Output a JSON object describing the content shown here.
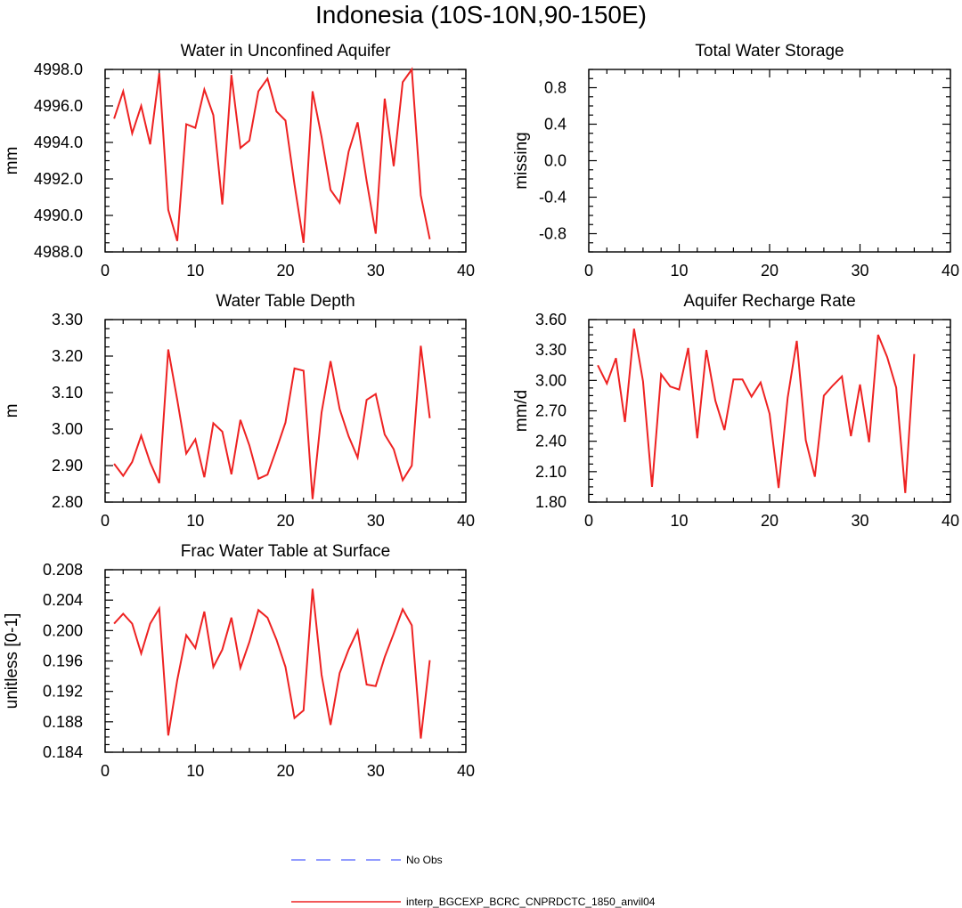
{
  "figure": {
    "title": "Indonesia (10S-10N,90-150E)"
  },
  "legend": {
    "entries": [
      {
        "label": "No Obs",
        "color": "#6f7cff",
        "style": "dashed"
      },
      {
        "label": "interp_BGCEXP_BCRC_CNPRDCTC_1850_anvil04",
        "color": "#ee2222",
        "style": "solid"
      }
    ]
  },
  "chart_data": [
    {
      "type": "line",
      "title": "Water in Unconfined Aquifer",
      "xlabel": "",
      "ylabel": "mm",
      "xlim": [
        0,
        40
      ],
      "ylim": [
        4988.0,
        4998.0
      ],
      "xticks": [
        "0",
        "10",
        "20",
        "30",
        "40"
      ],
      "yticks": [
        "4988.0",
        "4990.0",
        "4992.0",
        "4994.0",
        "4996.0",
        "4998.0"
      ],
      "series": [
        {
          "name": "interp_BGCEXP_BCRC_CNPRDCTC_1850_anvil04",
          "color": "#ee2222",
          "x": [
            1,
            2,
            3,
            4,
            5,
            6,
            7,
            8,
            9,
            10,
            11,
            12,
            13,
            14,
            15,
            16,
            17,
            18,
            19,
            20,
            21,
            22,
            23,
            24,
            25,
            26,
            27,
            28,
            29,
            30,
            31,
            32,
            33,
            34,
            35,
            36
          ],
          "values": [
            4995.3,
            4996.8,
            4994.5,
            4996.0,
            4993.9,
            4997.8,
            4990.3,
            4988.6,
            4995.0,
            4994.8,
            4996.9,
            4995.5,
            4990.6,
            4997.7,
            4993.7,
            4994.1,
            4996.8,
            4997.5,
            4995.7,
            4995.2,
            4991.7,
            4988.5,
            4996.8,
            4994.3,
            4991.4,
            4990.7,
            4993.5,
            4995.1,
            4991.9,
            4989.0,
            4996.4,
            4992.7,
            4997.3,
            4998.0,
            4991.1,
            4988.7
          ]
        }
      ]
    },
    {
      "type": "line",
      "title": "Total Water Storage",
      "xlabel": "",
      "ylabel": "missing",
      "xlim": [
        0,
        40
      ],
      "ylim": [
        -1.0,
        1.0
      ],
      "xticks": [
        "0",
        "10",
        "20",
        "30",
        "40"
      ],
      "yticks": [
        "-0.8",
        "-0.4",
        "0.0",
        "0.4",
        "0.8"
      ],
      "series": []
    },
    {
      "type": "line",
      "title": "Water Table Depth",
      "xlabel": "",
      "ylabel": "m",
      "xlim": [
        0,
        40
      ],
      "ylim": [
        2.8,
        3.3
      ],
      "xticks": [
        "0",
        "10",
        "20",
        "30",
        "40"
      ],
      "yticks": [
        "2.80",
        "2.90",
        "3.00",
        "3.10",
        "3.20",
        "3.30"
      ],
      "series": [
        {
          "name": "interp_BGCEXP_BCRC_CNPRDCTC_1850_anvil04",
          "color": "#ee2222",
          "x": [
            1,
            2,
            3,
            4,
            5,
            6,
            7,
            8,
            9,
            10,
            11,
            12,
            13,
            14,
            15,
            16,
            17,
            18,
            19,
            20,
            21,
            22,
            23,
            24,
            25,
            26,
            27,
            28,
            29,
            30,
            31,
            32,
            33,
            34,
            35,
            36
          ],
          "values": [
            2.905,
            2.872,
            2.91,
            2.982,
            2.908,
            2.852,
            3.218,
            3.08,
            2.933,
            2.972,
            2.868,
            3.016,
            2.993,
            2.876,
            3.025,
            2.955,
            2.864,
            2.875,
            2.945,
            3.018,
            3.166,
            3.16,
            2.808,
            3.045,
            3.186,
            3.055,
            2.98,
            2.922,
            3.08,
            3.096,
            2.985,
            2.945,
            2.86,
            2.9,
            3.228,
            3.03
          ]
        }
      ]
    },
    {
      "type": "line",
      "title": "Aquifer Recharge Rate",
      "xlabel": "",
      "ylabel": "mm/d",
      "xlim": [
        0,
        40
      ],
      "ylim": [
        1.8,
        3.6
      ],
      "xticks": [
        "0",
        "10",
        "20",
        "30",
        "40"
      ],
      "yticks": [
        "1.80",
        "2.10",
        "2.40",
        "2.70",
        "3.00",
        "3.30",
        "3.60"
      ],
      "series": [
        {
          "name": "interp_BGCEXP_BCRC_CNPRDCTC_1850_anvil04",
          "color": "#ee2222",
          "x": [
            1,
            2,
            3,
            4,
            5,
            6,
            7,
            8,
            9,
            10,
            11,
            12,
            13,
            14,
            15,
            16,
            17,
            18,
            19,
            20,
            21,
            22,
            23,
            24,
            25,
            26,
            27,
            28,
            29,
            30,
            31,
            32,
            33,
            34,
            35,
            36
          ],
          "values": [
            3.15,
            2.97,
            3.22,
            2.59,
            3.51,
            2.99,
            1.95,
            3.06,
            2.94,
            2.91,
            3.32,
            2.43,
            3.3,
            2.8,
            2.51,
            3.01,
            3.01,
            2.84,
            2.98,
            2.67,
            1.94,
            2.83,
            3.39,
            2.41,
            2.05,
            2.85,
            2.95,
            3.04,
            2.45,
            2.96,
            2.39,
            3.45,
            3.23,
            2.93,
            1.89,
            3.26
          ]
        }
      ]
    },
    {
      "type": "line",
      "title": "Frac Water Table at Surface",
      "xlabel": "",
      "ylabel": "unitless [0-1]",
      "xlim": [
        0,
        40
      ],
      "ylim": [
        0.184,
        0.208
      ],
      "xticks": [
        "0",
        "10",
        "20",
        "30",
        "40"
      ],
      "yticks": [
        "0.184",
        "0.188",
        "0.192",
        "0.196",
        "0.200",
        "0.204",
        "0.208"
      ],
      "series": [
        {
          "name": "interp_BGCEXP_BCRC_CNPRDCTC_1850_anvil04",
          "color": "#ee2222",
          "x": [
            1,
            2,
            3,
            4,
            5,
            6,
            7,
            8,
            9,
            10,
            11,
            12,
            13,
            14,
            15,
            16,
            17,
            18,
            19,
            20,
            21,
            22,
            23,
            24,
            25,
            26,
            27,
            28,
            29,
            30,
            31,
            32,
            33,
            34,
            35,
            36
          ],
          "values": [
            0.2009,
            0.2022,
            0.2009,
            0.197,
            0.2009,
            0.2029,
            0.1862,
            0.1935,
            0.1994,
            0.1977,
            0.2025,
            0.1952,
            0.1975,
            0.2017,
            0.1951,
            0.1985,
            0.2027,
            0.2017,
            0.1988,
            0.1952,
            0.1885,
            0.1895,
            0.2055,
            0.1942,
            0.1876,
            0.1944,
            0.1975,
            0.2,
            0.1929,
            0.1927,
            0.1965,
            0.1996,
            0.2028,
            0.2007,
            0.1858,
            0.1961
          ]
        }
      ]
    }
  ]
}
